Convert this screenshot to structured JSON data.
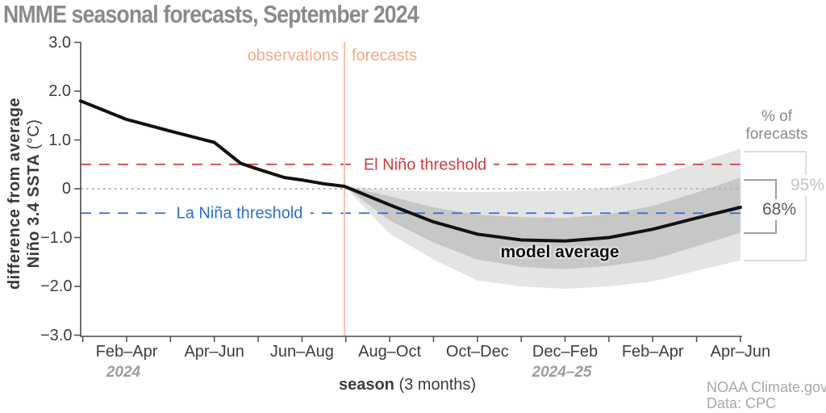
{
  "title": "NMME seasonal forecasts, September 2024",
  "axes": {
    "y_label_line1": "difference from average",
    "y_label_line2": "Niño 3.4 SSTA ",
    "y_label_unit": "(°C)",
    "x_caption_bold": "season",
    "x_caption_rest": " (3 months)",
    "y_ticks": [
      {
        "label": "3.0",
        "v": 3
      },
      {
        "label": "2.0",
        "v": 2
      },
      {
        "label": "1.0",
        "v": 1
      },
      {
        "label": "0",
        "v": 0
      },
      {
        "label": "−1.0",
        "v": -1
      },
      {
        "label": "−2.0",
        "v": -2
      },
      {
        "label": "−3.0",
        "v": -3
      }
    ],
    "x_ticks": [
      {
        "label": "Feb–Apr",
        "u": 1,
        "year": "2024"
      },
      {
        "label": "Apr–Jun",
        "u": 2
      },
      {
        "label": "Jun–Aug",
        "u": 3
      },
      {
        "label": "Aug–Oct",
        "u": 4
      },
      {
        "label": "Oct–Dec",
        "u": 5
      },
      {
        "label": "Dec–Feb",
        "u": 6,
        "year": "2024–25"
      },
      {
        "label": "Feb–Apr",
        "u": 7
      },
      {
        "label": "Apr–Jun",
        "u": 8
      }
    ]
  },
  "annotations": {
    "observations": "observations",
    "forecasts": "forecasts",
    "el_nino": "El Niño threshold",
    "la_nina": "La Niña threshold",
    "model_average": "model average",
    "pct_line1": "% of",
    "pct_line2": "forecasts",
    "band95": "95%",
    "band68": "68%"
  },
  "attribution": {
    "line1": "NOAA Climate.gov",
    "line2": "Data: CPC"
  },
  "colors": {
    "title_gray": "#8a8a8a",
    "axis": "#4a4a4a",
    "curve": "#111111",
    "band68": "#c7c7c7",
    "band95": "#e4e4e4",
    "el_nino_red": "#cf3c3c",
    "la_nina_blue": "#2b6fd0",
    "zero_gray": "#b3b3b3",
    "salmon_line": "#f8c3ab",
    "salmon_text": "#f8a98a"
  },
  "chart_data": {
    "type": "line",
    "title": "NMME seasonal forecasts, September 2024",
    "xlabel": "season (3 months)",
    "ylabel": "difference from average Niño 3.4 SSTA (°C)",
    "ylim": [
      -3.0,
      3.0
    ],
    "x_categories": [
      "Feb–Apr 2024",
      "Apr–Jun",
      "Jun–Aug",
      "Aug–Oct",
      "Oct–Dec",
      "Dec–Feb 2024–25",
      "Feb–Apr",
      "Apr–Jun"
    ],
    "thresholds": {
      "el_nino": 0.5,
      "zero": 0,
      "la_nina": -0.5
    },
    "observations_end_x": 3.484,
    "series": [
      {
        "name": "observations",
        "x": [
          0.474,
          1,
          1.5,
          2,
          2.3,
          2.5,
          2.8,
          3,
          3.25,
          3.484
        ],
        "y": [
          1.8,
          1.42,
          1.18,
          0.95,
          0.52,
          0.4,
          0.23,
          0.18,
          0.1,
          0.05
        ]
      },
      {
        "name": "model average",
        "x": [
          3.484,
          4,
          4.5,
          5,
          5.5,
          6,
          6.5,
          7,
          7.5,
          8
        ],
        "y": [
          0.05,
          -0.33,
          -0.68,
          -0.93,
          -1.05,
          -1.07,
          -1.0,
          -0.83,
          -0.6,
          -0.38
        ]
      },
      {
        "name": "68% of forecasts band",
        "x": [
          3.484,
          4,
          4.5,
          5,
          5.5,
          6,
          6.5,
          7,
          7.5,
          8
        ],
        "upper": [
          0.05,
          -0.15,
          -0.38,
          -0.53,
          -0.58,
          -0.6,
          -0.52,
          -0.35,
          -0.08,
          0.23
        ],
        "lower": [
          0.05,
          -0.65,
          -1.1,
          -1.45,
          -1.6,
          -1.65,
          -1.58,
          -1.45,
          -1.18,
          -0.9
        ]
      },
      {
        "name": "95% of forecasts band",
        "x": [
          3.484,
          4,
          4.5,
          5,
          5.5,
          6,
          6.5,
          7,
          7.5,
          8
        ],
        "upper": [
          0.05,
          -0.03,
          -0.05,
          -0.07,
          -0.05,
          -0.04,
          0.02,
          0.23,
          0.52,
          0.82
        ],
        "lower": [
          0.05,
          -0.92,
          -1.45,
          -1.88,
          -2.0,
          -2.05,
          -2.0,
          -1.9,
          -1.68,
          -1.47
        ]
      }
    ],
    "right_brackets": [
      {
        "label": "95%",
        "top": 0.82,
        "bottom": -1.47
      },
      {
        "label": "68%",
        "top": 0.23,
        "bottom": -0.9
      }
    ]
  }
}
